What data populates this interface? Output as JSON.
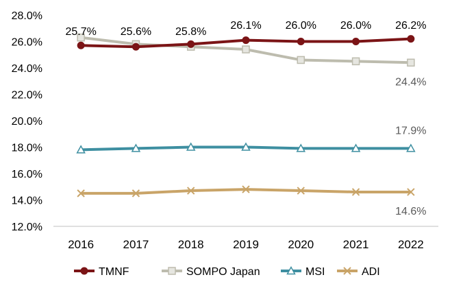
{
  "chart_data": {
    "type": "line",
    "title": "",
    "xlabel": "",
    "ylabel": "",
    "categories": [
      "2016",
      "2017",
      "2018",
      "2019",
      "2020",
      "2021",
      "2022"
    ],
    "ylim": [
      12.0,
      28.0
    ],
    "yticks": [
      "12.0%",
      "14.0%",
      "16.0%",
      "18.0%",
      "20.0%",
      "22.0%",
      "24.0%",
      "26.0%",
      "28.0%"
    ],
    "grid": false,
    "legend_position": "bottom",
    "series": [
      {
        "name": "TMNF",
        "color": "#7B1416",
        "marker": "circle",
        "values": [
          25.7,
          25.6,
          25.8,
          26.1,
          26.0,
          26.0,
          26.2
        ],
        "data_labels": [
          "25.7%",
          "25.6%",
          "25.8%",
          "26.1%",
          "26.0%",
          "26.0%",
          "26.2%"
        ]
      },
      {
        "name": "SOMPO Japan",
        "color": "#BDBCAE",
        "marker": "square",
        "values": [
          26.3,
          25.8,
          25.6,
          25.4,
          24.6,
          24.5,
          24.4
        ],
        "data_labels": [
          "",
          "",
          "",
          "",
          "",
          "",
          "24.4%"
        ]
      },
      {
        "name": "MSI",
        "color": "#3E8FA1",
        "marker": "triangle",
        "values": [
          17.8,
          17.9,
          18.0,
          18.0,
          17.9,
          17.9,
          17.9
        ],
        "data_labels": [
          "",
          "",
          "",
          "",
          "",
          "",
          "17.9%"
        ]
      },
      {
        "name": "ADI",
        "color": "#C9A468",
        "marker": "x",
        "values": [
          14.5,
          14.5,
          14.7,
          14.8,
          14.7,
          14.6,
          14.6
        ],
        "data_labels": [
          "",
          "",
          "",
          "",
          "",
          "",
          "14.6%"
        ]
      }
    ]
  }
}
